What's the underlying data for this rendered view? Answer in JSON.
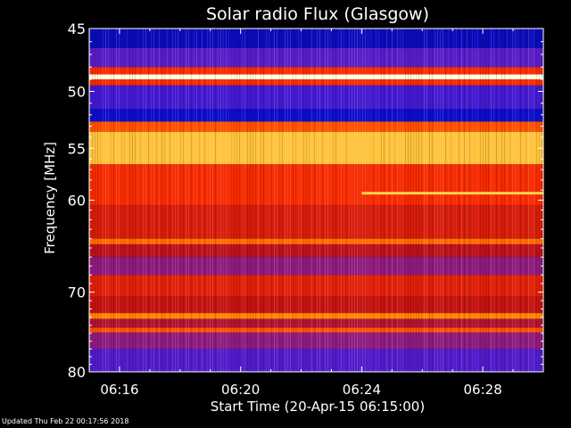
{
  "chart_data": {
    "type": "heatmap",
    "title": "Solar radio Flux (Glasgow)",
    "xlabel": "Start Time (20-Apr-15 06:15:00)",
    "ylabel": "Frequency [MHz]",
    "xlim": [
      "06:15:00",
      "06:30:00"
    ],
    "ylim": [
      45,
      80
    ],
    "y_inverted": true,
    "x_ticks": [
      "06:16",
      "06:20",
      "06:24",
      "06:28"
    ],
    "y_ticks": [
      45,
      50,
      55,
      60,
      70,
      80
    ],
    "colormap": [
      "#000060",
      "#1010e0",
      "#7020c0",
      "#c01010",
      "#ff3000",
      "#ff9000",
      "#ffff80",
      "#ffffff"
    ],
    "bands": [
      {
        "f0": 45.0,
        "f1": 46.5,
        "level": 0.1
      },
      {
        "f0": 46.5,
        "f1": 48.0,
        "level": 0.25
      },
      {
        "f0": 48.0,
        "f1": 48.6,
        "level": 0.55
      },
      {
        "f0": 48.6,
        "f1": 49.0,
        "level": 0.97
      },
      {
        "f0": 49.0,
        "f1": 49.5,
        "level": 0.55
      },
      {
        "f0": 49.5,
        "f1": 51.5,
        "level": 0.22
      },
      {
        "f0": 51.5,
        "f1": 52.6,
        "level": 0.12
      },
      {
        "f0": 52.6,
        "f1": 53.5,
        "level": 0.62
      },
      {
        "f0": 53.5,
        "f1": 56.5,
        "level": 0.78
      },
      {
        "f0": 56.5,
        "f1": 60.5,
        "level": 0.55
      },
      {
        "f0": 60.5,
        "f1": 64.0,
        "level": 0.48
      },
      {
        "f0": 64.0,
        "f1": 64.6,
        "level": 0.66
      },
      {
        "f0": 64.6,
        "f1": 66.0,
        "level": 0.42
      },
      {
        "f0": 66.0,
        "f1": 68.0,
        "level": 0.34
      },
      {
        "f0": 68.0,
        "f1": 70.5,
        "level": 0.5
      },
      {
        "f0": 70.5,
        "f1": 72.5,
        "level": 0.44
      },
      {
        "f0": 72.5,
        "f1": 73.2,
        "level": 0.7
      },
      {
        "f0": 73.2,
        "f1": 74.3,
        "level": 0.4
      },
      {
        "f0": 74.3,
        "f1": 74.9,
        "level": 0.62
      },
      {
        "f0": 74.9,
        "f1": 77.0,
        "level": 0.34
      },
      {
        "f0": 77.0,
        "f1": 80.0,
        "level": 0.24
      }
    ],
    "events": [
      {
        "t_start": "06:24:00",
        "t_end": "06:30:00",
        "f": 59.3,
        "level": 0.8
      }
    ]
  },
  "footer": {
    "updated": "Updated Thu Feb 22 00:17:56 2018"
  }
}
